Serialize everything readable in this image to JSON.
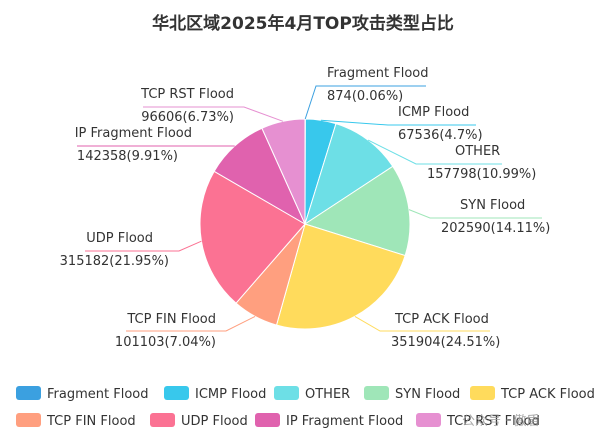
{
  "chart_data": {
    "type": "pie",
    "title": "华北区域2025年4月TOP攻击类型占比",
    "unit": "",
    "legend_position": "bottom",
    "slices": [
      {
        "name": "Fragment Flood",
        "value": 874,
        "label": "874(0.06%)",
        "color": "#3ba0e0"
      },
      {
        "name": "ICMP Flood",
        "value": 67536,
        "label": "67536(4.7%)",
        "color": "#38c8ec"
      },
      {
        "name": "OTHER",
        "value": 157798,
        "label": "157798(10.99%)",
        "color": "#6ddfe6"
      },
      {
        "name": "SYN Flood",
        "value": 202590,
        "label": "202590(14.11%)",
        "color": "#9fe6b8"
      },
      {
        "name": "TCP ACK Flood",
        "value": 351904,
        "label": "351904(24.51%)",
        "color": "#ffdb5c"
      },
      {
        "name": "TCP FIN Flood",
        "value": 101103,
        "label": "101103(7.04%)",
        "color": "#ff9f7f"
      },
      {
        "name": "UDP Flood",
        "value": 315182,
        "label": "315182(21.95%)",
        "color": "#fb7293"
      },
      {
        "name": "IP Fragment Flood",
        "value": 142358,
        "label": "142358(9.91%)",
        "color": "#e062ae"
      },
      {
        "name": "TCP RST Flood",
        "value": 96606,
        "label": "96606(6.73%)",
        "color": "#e690d1"
      }
    ]
  },
  "watermark": {
    "text": "公众号 · 傲盾"
  }
}
